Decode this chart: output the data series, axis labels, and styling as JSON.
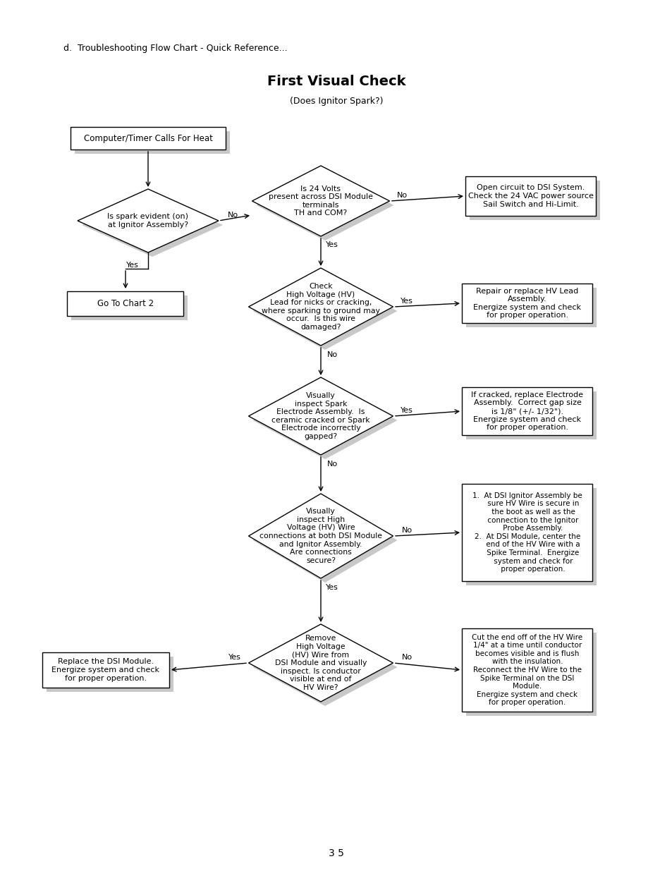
{
  "title": "First Visual Check",
  "subtitle": "(Does Ignitor Spark?)",
  "header_text": "d.  Troubleshooting Flow Chart - Quick Reference...",
  "footer_text": "3 5",
  "bg_color": "#ffffff",
  "box_color": "#ffffff",
  "box_edge": "#000000",
  "shadow_color": "#c8c8c8",
  "arrow_color": "#000000",
  "text_color": "#000000"
}
